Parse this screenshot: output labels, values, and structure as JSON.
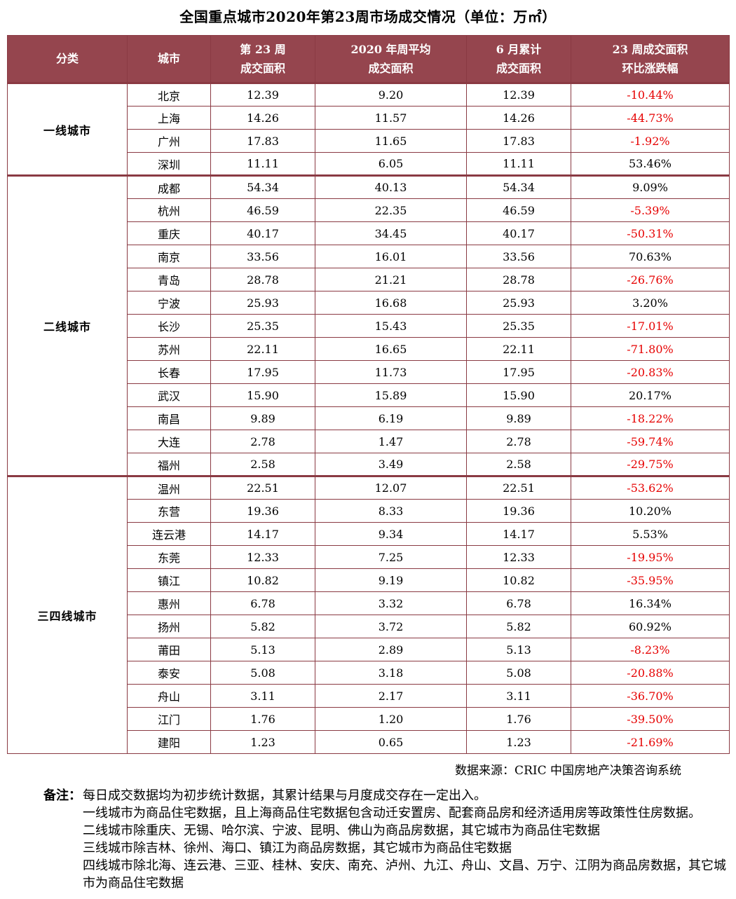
{
  "title": "全国重点城市2020年第23周市场成交情况（单位：万㎡）",
  "colors": {
    "header_bg": "#95454e",
    "border": "#8a3a43",
    "negative": "#e60000",
    "header_text": "#ffffff"
  },
  "table": {
    "headers": {
      "category": "分类",
      "city": "城市",
      "week23": [
        "第 23 周",
        "成交面积"
      ],
      "weekly_avg": [
        "2020 年周平均",
        "成交面积"
      ],
      "june_total": [
        "6 月累计",
        "成交面积"
      ],
      "change": [
        "23 周成交面积",
        "环比涨跌幅"
      ]
    },
    "groups": [
      {
        "category": "一线城市",
        "rows": [
          {
            "city": "北京",
            "week23": "12.39",
            "weekly_avg": "9.20",
            "june_total": "12.39",
            "change": "-10.44%"
          },
          {
            "city": "上海",
            "week23": "14.26",
            "weekly_avg": "11.57",
            "june_total": "14.26",
            "change": "-44.73%"
          },
          {
            "city": "广州",
            "week23": "17.83",
            "weekly_avg": "11.65",
            "june_total": "17.83",
            "change": "-1.92%"
          },
          {
            "city": "深圳",
            "week23": "11.11",
            "weekly_avg": "6.05",
            "june_total": "11.11",
            "change": "53.46%"
          }
        ]
      },
      {
        "category": "二线城市",
        "rows": [
          {
            "city": "成都",
            "week23": "54.34",
            "weekly_avg": "40.13",
            "june_total": "54.34",
            "change": "9.09%"
          },
          {
            "city": "杭州",
            "week23": "46.59",
            "weekly_avg": "22.35",
            "june_total": "46.59",
            "change": "-5.39%"
          },
          {
            "city": "重庆",
            "week23": "40.17",
            "weekly_avg": "34.45",
            "june_total": "40.17",
            "change": "-50.31%"
          },
          {
            "city": "南京",
            "week23": "33.56",
            "weekly_avg": "16.01",
            "june_total": "33.56",
            "change": "70.63%"
          },
          {
            "city": "青岛",
            "week23": "28.78",
            "weekly_avg": "21.21",
            "june_total": "28.78",
            "change": "-26.76%"
          },
          {
            "city": "宁波",
            "week23": "25.93",
            "weekly_avg": "16.68",
            "june_total": "25.93",
            "change": "3.20%"
          },
          {
            "city": "长沙",
            "week23": "25.35",
            "weekly_avg": "15.43",
            "june_total": "25.35",
            "change": "-17.01%"
          },
          {
            "city": "苏州",
            "week23": "22.11",
            "weekly_avg": "16.65",
            "june_total": "22.11",
            "change": "-71.80%"
          },
          {
            "city": "长春",
            "week23": "17.95",
            "weekly_avg": "11.73",
            "june_total": "17.95",
            "change": "-20.83%"
          },
          {
            "city": "武汉",
            "week23": "15.90",
            "weekly_avg": "15.89",
            "june_total": "15.90",
            "change": "20.17%"
          },
          {
            "city": "南昌",
            "week23": "9.89",
            "weekly_avg": "6.19",
            "june_total": "9.89",
            "change": "-18.22%"
          },
          {
            "city": "大连",
            "week23": "2.78",
            "weekly_avg": "1.47",
            "june_total": "2.78",
            "change": "-59.74%"
          },
          {
            "city": "福州",
            "week23": "2.58",
            "weekly_avg": "3.49",
            "june_total": "2.58",
            "change": "-29.75%"
          }
        ]
      },
      {
        "category": "三四线城市",
        "rows": [
          {
            "city": "温州",
            "week23": "22.51",
            "weekly_avg": "12.07",
            "june_total": "22.51",
            "change": "-53.62%"
          },
          {
            "city": "东营",
            "week23": "19.36",
            "weekly_avg": "8.33",
            "june_total": "19.36",
            "change": "10.20%"
          },
          {
            "city": "连云港",
            "week23": "14.17",
            "weekly_avg": "9.34",
            "june_total": "14.17",
            "change": "5.53%"
          },
          {
            "city": "东莞",
            "week23": "12.33",
            "weekly_avg": "7.25",
            "june_total": "12.33",
            "change": "-19.95%"
          },
          {
            "city": "镇江",
            "week23": "10.82",
            "weekly_avg": "9.19",
            "june_total": "10.82",
            "change": "-35.95%"
          },
          {
            "city": "惠州",
            "week23": "6.78",
            "weekly_avg": "3.32",
            "june_total": "6.78",
            "change": "16.34%"
          },
          {
            "city": "扬州",
            "week23": "5.82",
            "weekly_avg": "3.72",
            "june_total": "5.82",
            "change": "60.92%"
          },
          {
            "city": "莆田",
            "week23": "5.13",
            "weekly_avg": "2.89",
            "june_total": "5.13",
            "change": "-8.23%"
          },
          {
            "city": "泰安",
            "week23": "5.08",
            "weekly_avg": "3.18",
            "june_total": "5.08",
            "change": "-20.88%"
          },
          {
            "city": "舟山",
            "week23": "3.11",
            "weekly_avg": "2.17",
            "june_total": "3.11",
            "change": "-36.70%"
          },
          {
            "city": "江门",
            "week23": "1.76",
            "weekly_avg": "1.20",
            "june_total": "1.76",
            "change": "-39.50%"
          },
          {
            "city": "建阳",
            "week23": "1.23",
            "weekly_avg": "0.65",
            "june_total": "1.23",
            "change": "-21.69%"
          }
        ]
      }
    ]
  },
  "source": "数据来源：CRIC 中国房地产决策咨询系统",
  "notes": {
    "label": "备注：",
    "lines": [
      "每日成交数据均为初步统计数据，其累计结果与月度成交存在一定出入。",
      "一线城市为商品住宅数据，且上海商品住宅数据包含动迁安置房、配套商品房和经济适用房等政策性住房数据。",
      "二线城市除重庆、无锡、哈尔滨、宁波、昆明、佛山为商品房数据，其它城市为商品住宅数据",
      "三线城市除吉林、徐州、海口、镇江为商品房数据，其它城市为商品住宅数据",
      "四线城市除北海、连云港、三亚、桂林、安庆、南充、泸州、九江、舟山、文昌、万宁、江阴为商品房数据，其它城市为商品住宅数据"
    ]
  }
}
